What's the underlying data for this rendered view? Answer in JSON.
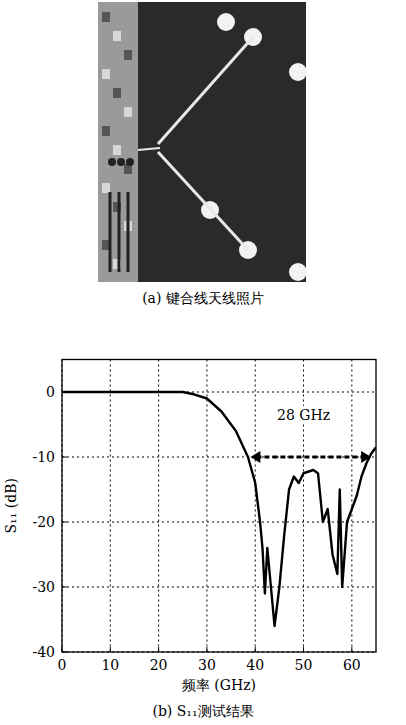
{
  "photo": {
    "caption": "(a) 键合线天线照片"
  },
  "chart_data": {
    "type": "line",
    "title": "(b) S₁₁测试结果",
    "x_label": "频率 (GHz)",
    "y_label": "S₁₁ (dB)",
    "x": [
      0,
      10,
      20,
      25,
      27,
      30,
      33,
      36,
      38.5,
      40,
      41,
      41.5,
      42,
      42.5,
      43,
      44,
      45,
      46,
      47,
      48,
      49,
      50,
      52,
      53,
      54,
      55,
      56,
      57,
      57.5,
      58,
      59,
      60,
      61,
      62,
      63,
      64,
      65
    ],
    "series": [
      {
        "name": "S₁₁",
        "color": "#000000",
        "values": [
          0,
          0,
          0,
          0,
          -0.3,
          -1,
          -3,
          -6,
          -10,
          -14,
          -20,
          -24,
          -31,
          -24,
          -28,
          -36,
          -30,
          -22,
          -15,
          -13,
          -14,
          -12.5,
          -12,
          -12.5,
          -20,
          -18,
          -25,
          -28,
          -15,
          -30,
          -20,
          -18,
          -16,
          -13,
          -11,
          -9.5,
          -8.5
        ]
      }
    ],
    "xlim": [
      0,
      65
    ],
    "xticks": [
      0,
      10,
      20,
      30,
      40,
      50,
      60
    ],
    "ylim": [
      -40,
      5
    ],
    "yticks": [
      0,
      -10,
      -20,
      -30,
      -40
    ],
    "grid": true,
    "annotations": [
      {
        "text": "28 GHz",
        "x": 50,
        "y": -3.5,
        "arrow_x": [
          39,
          64
        ],
        "arrow_y": -10
      }
    ]
  }
}
